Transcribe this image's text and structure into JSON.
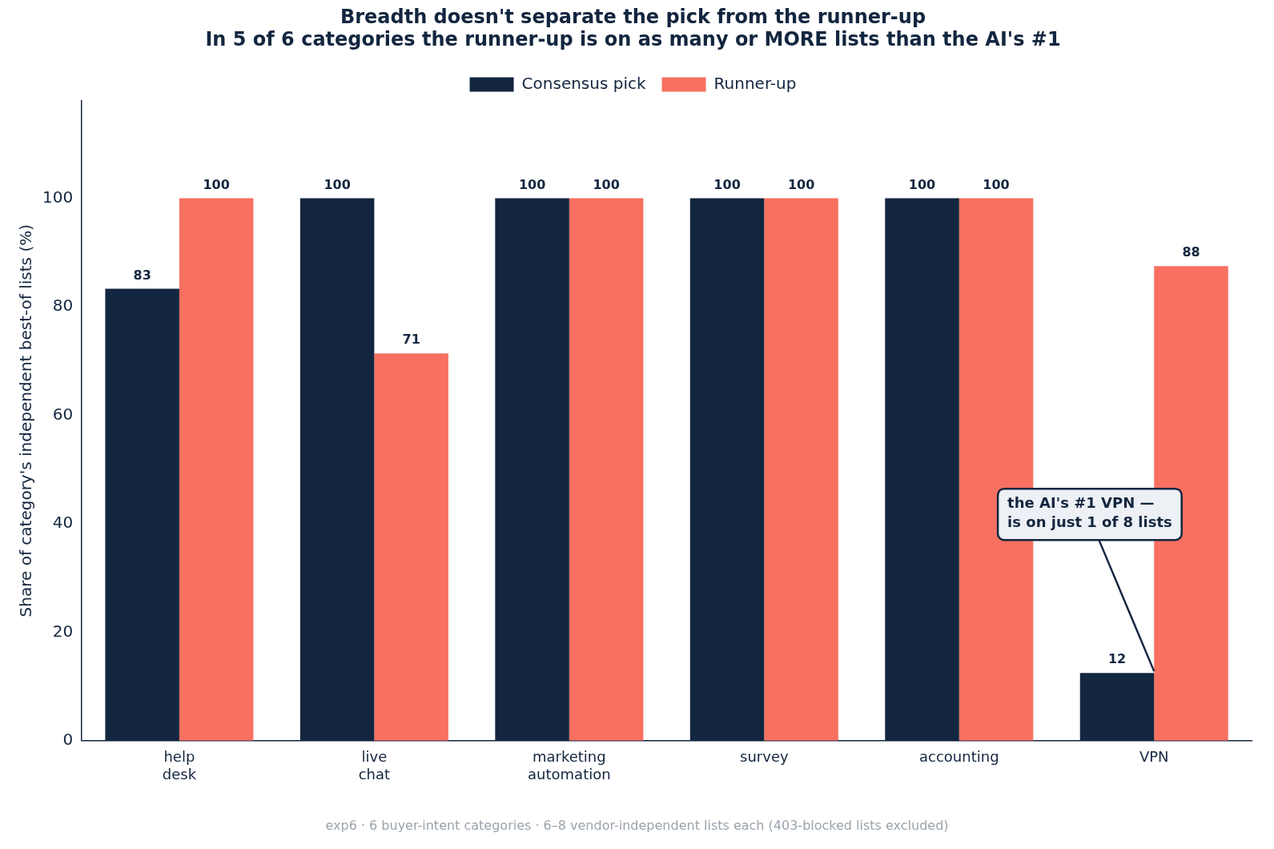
{
  "chart_data": {
    "type": "bar",
    "title": "Breadth doesn't separate the pick from the runner-up",
    "subtitle": "In 5 of 6 categories the runner-up is on as many or MORE lists than the AI's #1",
    "ylabel": "Share of category's independent best-of lists (%)",
    "categories": [
      "help desk",
      "live chat",
      "marketing automation",
      "survey",
      "accounting",
      "VPN"
    ],
    "series": [
      {
        "name": "Consensus pick",
        "color": "#13263f",
        "values": [
          83.3,
          100,
          100,
          100,
          100,
          12.5
        ],
        "value_labels": [
          "83",
          "100",
          "100",
          "100",
          "100",
          "12"
        ]
      },
      {
        "name": "Runner-up",
        "color": "#f77060",
        "values": [
          100,
          71.4,
          100,
          100,
          100,
          87.5
        ],
        "value_labels": [
          "100",
          "71",
          "100",
          "100",
          "100",
          "88"
        ]
      }
    ],
    "ylim": [
      0,
      118
    ],
    "yticks": [
      0,
      20,
      40,
      60,
      80,
      100
    ],
    "grid": false,
    "legend": "top",
    "annotations": [
      {
        "text": "the AI's #1 VPN — is on just 1 of 8 lists",
        "x": "VPN",
        "y": 12.5
      },
      "exp6 · 6 buyer-intent categories · 6–8 vendor-independent lists each (403-blocked lists excluded)"
    ]
  }
}
